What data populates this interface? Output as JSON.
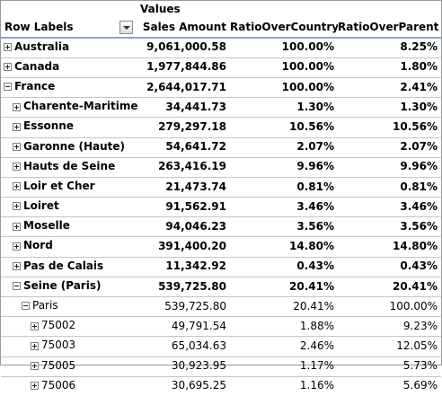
{
  "header": {
    "values_label": "Values",
    "row_labels": "Row Labels",
    "columns": [
      "Sales Amount",
      "RatioOverCountry",
      "RatioOverParent"
    ]
  },
  "rows": [
    {
      "label": "Australia",
      "sales": "9,061,000.58",
      "ratio_country": "100.00%",
      "ratio_parent": "8.25%"
    },
    {
      "label": "Canada",
      "sales": "1,977,844.86",
      "ratio_country": "100.00%",
      "ratio_parent": "1.80%"
    },
    {
      "label": "France",
      "sales": "2,644,017.71",
      "ratio_country": "100.00%",
      "ratio_parent": "2.41%"
    },
    {
      "label": "Charente-Maritime",
      "sales": "34,441.73",
      "ratio_country": "1.30%",
      "ratio_parent": "1.30%"
    },
    {
      "label": "Essonne",
      "sales": "279,297.18",
      "ratio_country": "10.56%",
      "ratio_parent": "10.56%"
    },
    {
      "label": "Garonne (Haute)",
      "sales": "54,641.72",
      "ratio_country": "2.07%",
      "ratio_parent": "2.07%"
    },
    {
      "label": "Hauts de Seine",
      "sales": "263,416.19",
      "ratio_country": "9.96%",
      "ratio_parent": "9.96%"
    },
    {
      "label": "Loir et Cher",
      "sales": "21,473.74",
      "ratio_country": "0.81%",
      "ratio_parent": "0.81%"
    },
    {
      "label": "Loiret",
      "sales": "91,562.91",
      "ratio_country": "3.46%",
      "ratio_parent": "3.46%"
    },
    {
      "label": "Moselle",
      "sales": "94,046.23",
      "ratio_country": "3.56%",
      "ratio_parent": "3.56%"
    },
    {
      "label": "Nord",
      "sales": "391,400.20",
      "ratio_country": "14.80%",
      "ratio_parent": "14.80%"
    },
    {
      "label": "Pas de Calais",
      "sales": "11,342.92",
      "ratio_country": "0.43%",
      "ratio_parent": "0.43%"
    },
    {
      "label": "Seine (Paris)",
      "sales": "539,725.80",
      "ratio_country": "20.41%",
      "ratio_parent": "20.41%"
    },
    {
      "label": "Paris",
      "sales": "539,725.80",
      "ratio_country": "20.41%",
      "ratio_parent": "100.00%"
    },
    {
      "label": "75002",
      "sales": "49,791.54",
      "ratio_country": "1.88%",
      "ratio_parent": "9.23%"
    },
    {
      "label": "75003",
      "sales": "65,034.63",
      "ratio_country": "2.46%",
      "ratio_parent": "12.05%"
    },
    {
      "label": "75005",
      "sales": "30,923.95",
      "ratio_country": "1.17%",
      "ratio_parent": "5.73%"
    },
    {
      "label": "75006",
      "sales": "30,695.25",
      "ratio_country": "1.16%",
      "ratio_parent": "5.69%"
    }
  ]
}
